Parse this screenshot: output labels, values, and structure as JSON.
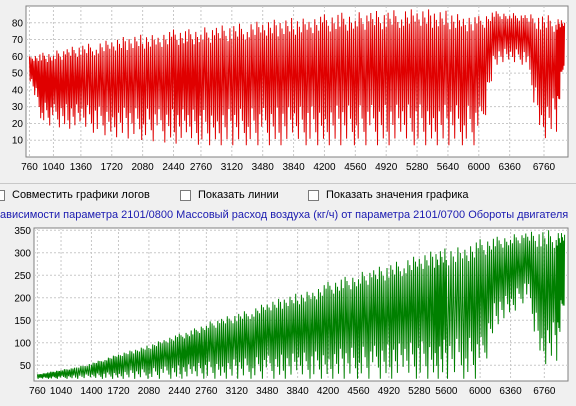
{
  "options": {
    "combine_label": "Совместить графики логов",
    "lines_label": "Показать линии",
    "values_label": "Показать значения графика"
  },
  "chart_title": "ависимости параметра 2101/0800 Массовый расход воздуха (кг/ч) от параметра 2101/0700 Обороты двигателя",
  "chart_data": [
    {
      "type": "line",
      "x_ticks": [
        760,
        1040,
        1360,
        1720,
        2080,
        2440,
        2760,
        3120,
        3480,
        3840,
        4200,
        4560,
        4920,
        5280,
        5640,
        6000,
        6360,
        6760
      ],
      "y_ticks": [
        10,
        20,
        30,
        40,
        50,
        60,
        70,
        80
      ],
      "xlim": [
        720,
        7040
      ],
      "ylim": [
        0,
        90
      ],
      "grid": true,
      "color": "#e00000",
      "x": [
        760,
        900,
        1040,
        1200,
        1360,
        1540,
        1720,
        1900,
        2080,
        2260,
        2440,
        2600,
        2760,
        2940,
        3120,
        3300,
        3480,
        3660,
        3840,
        4020,
        4200,
        4380,
        4560,
        4740,
        4920,
        5100,
        5280,
        5460,
        5640,
        5820,
        6000,
        6180,
        6360,
        6540,
        6720,
        6900,
        7000
      ],
      "upper": [
        60,
        62,
        63,
        65,
        67,
        68,
        70,
        72,
        73,
        74,
        76,
        76,
        77,
        78,
        79,
        80,
        81,
        82,
        83,
        84,
        85,
        86,
        86,
        87,
        87,
        88,
        88,
        88,
        87,
        86,
        84,
        87,
        86,
        85,
        85,
        84,
        80
      ],
      "lower": [
        45,
        20,
        18,
        17,
        16,
        14,
        12,
        11,
        10,
        9,
        8,
        8,
        7,
        7,
        7,
        7,
        7,
        7,
        7,
        7,
        7,
        7,
        7,
        7,
        7,
        7,
        7,
        7,
        7,
        7,
        7,
        55,
        55,
        55,
        10,
        15,
        60
      ]
    },
    {
      "type": "line",
      "x_ticks": [
        760,
        1040,
        1400,
        1720,
        2080,
        2440,
        2760,
        3120,
        3480,
        3840,
        4200,
        4560,
        4920,
        5280,
        5600,
        6000,
        6360,
        6760
      ],
      "y_ticks": [
        50,
        100,
        150,
        200,
        250,
        300,
        350
      ],
      "xlim": [
        720,
        7040
      ],
      "ylim": [
        15,
        355
      ],
      "grid": true,
      "color": "#008000",
      "x": [
        760,
        900,
        1040,
        1200,
        1400,
        1560,
        1720,
        1900,
        2080,
        2260,
        2440,
        2600,
        2760,
        2940,
        3120,
        3300,
        3480,
        3660,
        3840,
        4020,
        4200,
        4380,
        4560,
        4740,
        4920,
        5100,
        5280,
        5460,
        5600,
        5820,
        6000,
        6180,
        6360,
        6540,
        6720,
        6900,
        7000
      ],
      "upper": [
        30,
        35,
        40,
        45,
        55,
        65,
        75,
        85,
        95,
        110,
        120,
        130,
        145,
        155,
        165,
        175,
        190,
        200,
        210,
        220,
        235,
        245,
        255,
        265,
        275,
        285,
        295,
        305,
        310,
        320,
        330,
        335,
        340,
        345,
        350,
        350,
        340
      ],
      "lower": [
        20,
        20,
        20,
        20,
        20,
        20,
        20,
        20,
        20,
        20,
        20,
        20,
        20,
        20,
        20,
        20,
        20,
        20,
        20,
        20,
        20,
        20,
        20,
        20,
        20,
        20,
        20,
        20,
        20,
        20,
        20,
        140,
        150,
        200,
        50,
        60,
        200
      ]
    }
  ]
}
